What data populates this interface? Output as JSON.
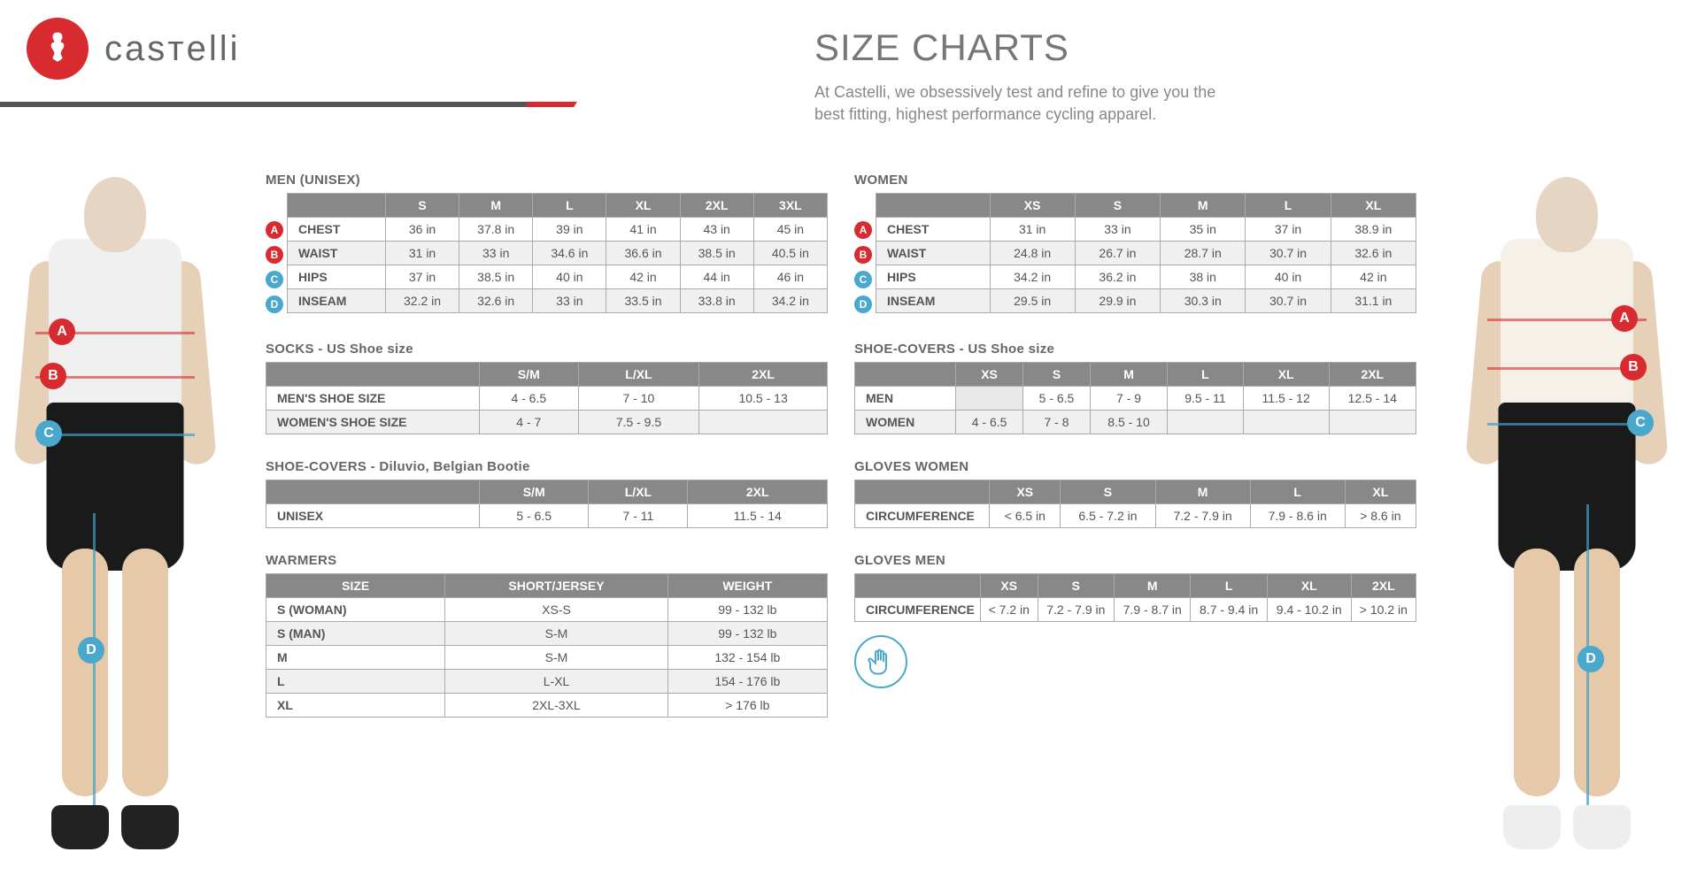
{
  "brand": "casтelli",
  "page_title": "SIZE CHARTS",
  "subtitle_l1": "At Castelli, we obsessively test and refine to give you the",
  "subtitle_l2": "best fitting, highest performance cycling apparel.",
  "badges": {
    "A": "A",
    "B": "B",
    "C": "C",
    "D": "D"
  },
  "men": {
    "title": "MEN (UNISEX)",
    "cols": [
      "S",
      "M",
      "L",
      "XL",
      "2XL",
      "3XL"
    ],
    "rows": [
      {
        "k": "CHEST",
        "b": "A",
        "bc": "red",
        "v": [
          "36 in",
          "37.8 in",
          "39 in",
          "41 in",
          "43 in",
          "45 in"
        ]
      },
      {
        "k": "WAIST",
        "b": "B",
        "bc": "red",
        "v": [
          "31 in",
          "33 in",
          "34.6 in",
          "36.6 in",
          "38.5 in",
          "40.5 in"
        ]
      },
      {
        "k": "HIPS",
        "b": "C",
        "bc": "blue",
        "v": [
          "37 in",
          "38.5 in",
          "40 in",
          "42 in",
          "44 in",
          "46 in"
        ]
      },
      {
        "k": "INSEAM",
        "b": "D",
        "bc": "blue",
        "v": [
          "32.2 in",
          "32.6 in",
          "33 in",
          "33.5 in",
          "33.8 in",
          "34.2 in"
        ]
      }
    ]
  },
  "women": {
    "title": "WOMEN",
    "cols": [
      "XS",
      "S",
      "M",
      "L",
      "XL"
    ],
    "rows": [
      {
        "k": "CHEST",
        "b": "A",
        "bc": "red",
        "v": [
          "31 in",
          "33 in",
          "35 in",
          "37 in",
          "38.9 in"
        ]
      },
      {
        "k": "WAIST",
        "b": "B",
        "bc": "red",
        "v": [
          "24.8 in",
          "26.7 in",
          "28.7 in",
          "30.7 in",
          "32.6 in"
        ]
      },
      {
        "k": "HIPS",
        "b": "C",
        "bc": "blue",
        "v": [
          "34.2 in",
          "36.2 in",
          "38 in",
          "40 in",
          "42 in"
        ]
      },
      {
        "k": "INSEAM",
        "b": "D",
        "bc": "blue",
        "v": [
          "29.5 in",
          "29.9 in",
          "30.3 in",
          "30.7 in",
          "31.1 in"
        ]
      }
    ]
  },
  "socks": {
    "title": "SOCKS - US Shoe size",
    "cols": [
      "S/M",
      "L/XL",
      "2XL"
    ],
    "rows": [
      {
        "k": "MEN'S SHOE SIZE",
        "v": [
          "4 - 6.5",
          "7 - 10",
          "10.5 - 13"
        ]
      },
      {
        "k": "WOMEN'S SHOE SIZE",
        "v": [
          "4 - 7",
          "7.5 - 9.5",
          ""
        ]
      }
    ]
  },
  "shoecovers_us": {
    "title": "SHOE-COVERS - US Shoe size",
    "cols": [
      "XS",
      "S",
      "M",
      "L",
      "XL",
      "2XL"
    ],
    "rows": [
      {
        "k": "MEN",
        "v": [
          "",
          "5 - 6.5",
          "7 - 9",
          "9.5 - 11",
          "11.5 - 12",
          "12.5 - 14"
        ]
      },
      {
        "k": "WOMEN",
        "v": [
          "4 - 6.5",
          "7 - 8",
          "8.5 - 10",
          "",
          "",
          ""
        ]
      }
    ]
  },
  "shoecovers_diluvio": {
    "title": "SHOE-COVERS - Diluvio, Belgian Bootie",
    "cols": [
      "S/M",
      "L/XL",
      "2XL"
    ],
    "rows": [
      {
        "k": "UNISEX",
        "v": [
          "5 - 6.5",
          "7 - 11",
          "11.5 - 14"
        ]
      }
    ]
  },
  "gloves_women": {
    "title": "GLOVES WOMEN",
    "cols": [
      "XS",
      "S",
      "M",
      "L",
      "XL"
    ],
    "rows": [
      {
        "k": "CIRCUMFERENCE",
        "v": [
          "< 6.5 in",
          "6.5 - 7.2 in",
          "7.2 - 7.9 in",
          "7.9 - 8.6 in",
          "> 8.6 in"
        ]
      }
    ]
  },
  "gloves_men": {
    "title": "GLOVES MEN",
    "cols": [
      "XS",
      "S",
      "M",
      "L",
      "XL",
      "2XL"
    ],
    "rows": [
      {
        "k": "CIRCUMFERENCE",
        "v": [
          "< 7.2 in",
          "7.2 - 7.9 in",
          "7.9 - 8.7 in",
          "8.7 - 9.4 in",
          "9.4 - 10.2 in",
          "> 10.2 in"
        ]
      }
    ]
  },
  "warmers": {
    "title": "WARMERS",
    "cols": [
      "SIZE",
      "SHORT/JERSEY",
      "WEIGHT"
    ],
    "rows": [
      [
        "S (WOMAN)",
        "XS-S",
        "99 - 132 lb"
      ],
      [
        "S (MAN)",
        "S-M",
        "99 - 132 lb"
      ],
      [
        "M",
        "S-M",
        "132 - 154 lb"
      ],
      [
        "L",
        "L-XL",
        "154 - 176 lb"
      ],
      [
        "XL",
        "2XL-3XL",
        "> 176 lb"
      ]
    ]
  }
}
